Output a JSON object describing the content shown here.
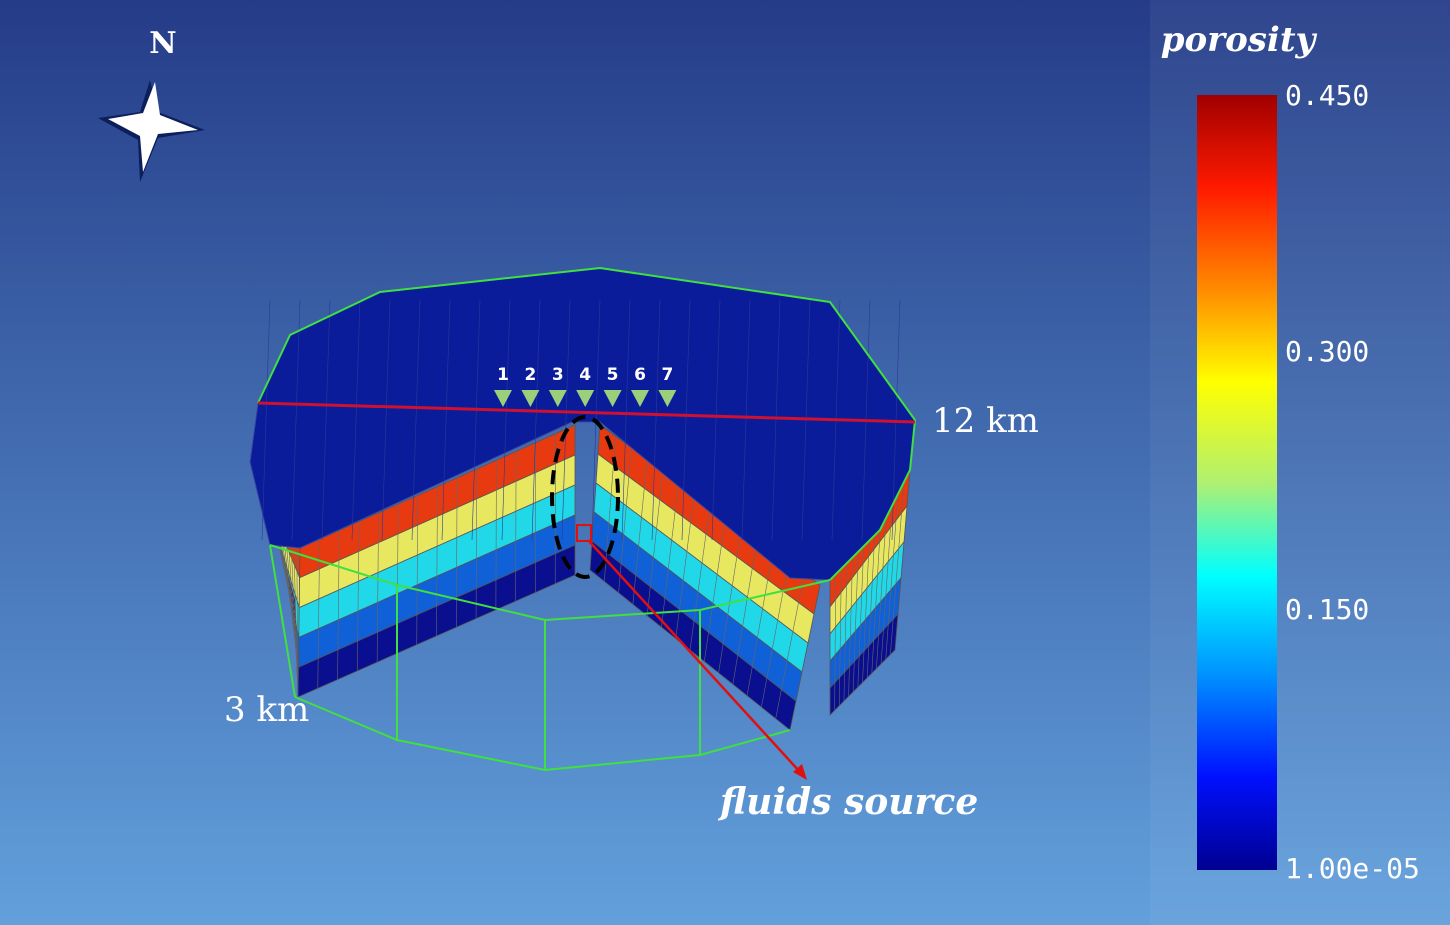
{
  "compass": {
    "label": "N"
  },
  "stations": [
    "1",
    "2",
    "3",
    "4",
    "5",
    "6",
    "7"
  ],
  "annotations": {
    "width": "12 km",
    "depth": "3 km",
    "source": "fluids source"
  },
  "colorbar": {
    "title": "porosity",
    "ticks": [
      "0.450",
      "0.300",
      "0.150",
      "1.00e-05"
    ]
  }
}
